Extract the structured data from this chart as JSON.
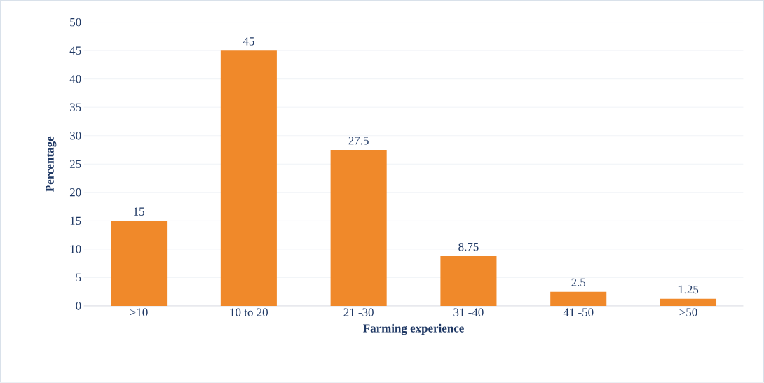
{
  "chart_data": {
    "type": "bar",
    "xlabel": "Farming experience",
    "ylabel": "Percentage",
    "categories": [
      ">10",
      "10 to 20",
      "21 -30",
      "31 -40",
      "41 -50",
      ">50"
    ],
    "values": [
      15,
      45,
      27.5,
      8.75,
      2.5,
      1.25
    ],
    "value_labels": [
      "15",
      "45",
      "27.5",
      "8.75",
      "2.5",
      "1.25"
    ],
    "color": "#f0892a",
    "ylim": [
      0,
      50
    ],
    "yticks": [
      0,
      5,
      10,
      15,
      20,
      25,
      30,
      35,
      40,
      45,
      50
    ],
    "grid": "y"
  }
}
